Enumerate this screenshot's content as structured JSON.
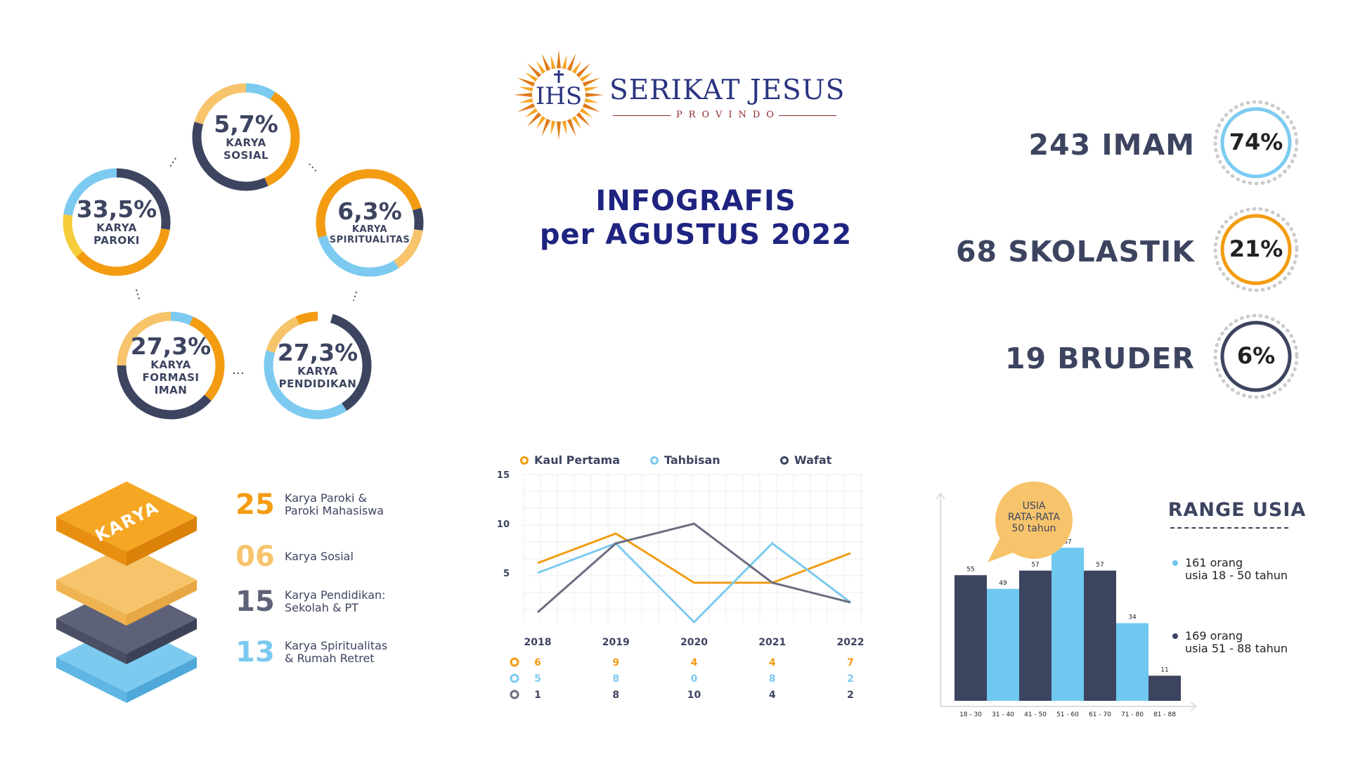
{
  "logo": {
    "title": "SERIKAT JESUS",
    "subtitle": "PROVINDO",
    "monogram": "IHS"
  },
  "header": {
    "line1": "INFOGRAFIS",
    "line2": "per AGUSTUS 2022"
  },
  "colors": {
    "orange": "#f39c12",
    "light_orange": "#f7c46c",
    "navy": "#3d4460",
    "sky": "#7ccaf0",
    "yellow": "#f5cc3a",
    "dark_blue": "#1f2380"
  },
  "donuts": [
    {
      "pct": "5,7%",
      "label": "KARYA\nSOSIAL"
    },
    {
      "pct": "33,5%",
      "label": "KARYA\nPAROKI"
    },
    {
      "pct": "6,3%",
      "label": "KARYA\nSPIRITUALITAS"
    },
    {
      "pct": "27,3%",
      "label": "KARYA\nFORMASI\nIMAN"
    },
    {
      "pct": "27,3%",
      "label": "KARYA\nPENDIDIKAN"
    }
  ],
  "stats": [
    {
      "label": "243 IMAM",
      "pct": "74%",
      "color": "#7ccaf0"
    },
    {
      "label": "68 SKOLASTIK",
      "pct": "21%",
      "color": "#f39c12"
    },
    {
      "label": "19 BRUDER",
      "pct": "6%",
      "color": "#3d4460"
    }
  ],
  "karya": {
    "stack_label": "KARYA",
    "items": [
      {
        "num": "25",
        "text": "Karya Paroki &\nParoki Mahasiswa",
        "color": "#f39c12"
      },
      {
        "num": "06",
        "text": "Karya Sosial",
        "color": "#f7c46c"
      },
      {
        "num": "15",
        "text": "Karya Pendidikan:\nSekolah & PT",
        "color": "#5d6278"
      },
      {
        "num": "13",
        "text": "Karya Spiritualitas\n& Rumah Retret",
        "color": "#7ccaf0"
      }
    ]
  },
  "chart_data": [
    {
      "type": "line",
      "x": [
        "2018",
        "2019",
        "2020",
        "2021",
        "2022"
      ],
      "yticks": [
        5,
        10,
        15
      ],
      "ylim": [
        0,
        15
      ],
      "series": [
        {
          "name": "Kaul Pertama",
          "values": [
            6,
            9,
            4,
            4,
            7
          ],
          "color": "#f39c12"
        },
        {
          "name": "Tahbisan",
          "values": [
            5,
            8,
            0,
            8,
            2
          ],
          "color": "#7ccaf0"
        },
        {
          "name": "Wafat",
          "values": [
            1,
            8,
            10,
            4,
            2
          ],
          "color": "#6b6e80"
        }
      ]
    },
    {
      "type": "bar",
      "title": "RANGE USIA",
      "categories": [
        "18 - 30",
        "31 - 40",
        "41 - 50",
        "51 - 60",
        "61 - 70",
        "71 - 80",
        "81 - 88"
      ],
      "values": [
        55,
        49,
        57,
        67,
        57,
        34,
        11
      ],
      "bar_colors": [
        "#3d4460",
        "#6fc8f0",
        "#3d4460",
        "#6fc8f0",
        "#3d4460",
        "#6fc8f0",
        "#3d4460"
      ],
      "ylim": [
        0,
        80
      ],
      "annotation": "USIA\nRATA-RATA\n50 tahun",
      "legend": [
        {
          "text": "161 orang\nusia 18 - 50 tahun",
          "color": "#6fc8f0"
        },
        {
          "text": "169 orang\nusia 51 - 88 tahun",
          "color": "#3d4460"
        }
      ]
    }
  ]
}
